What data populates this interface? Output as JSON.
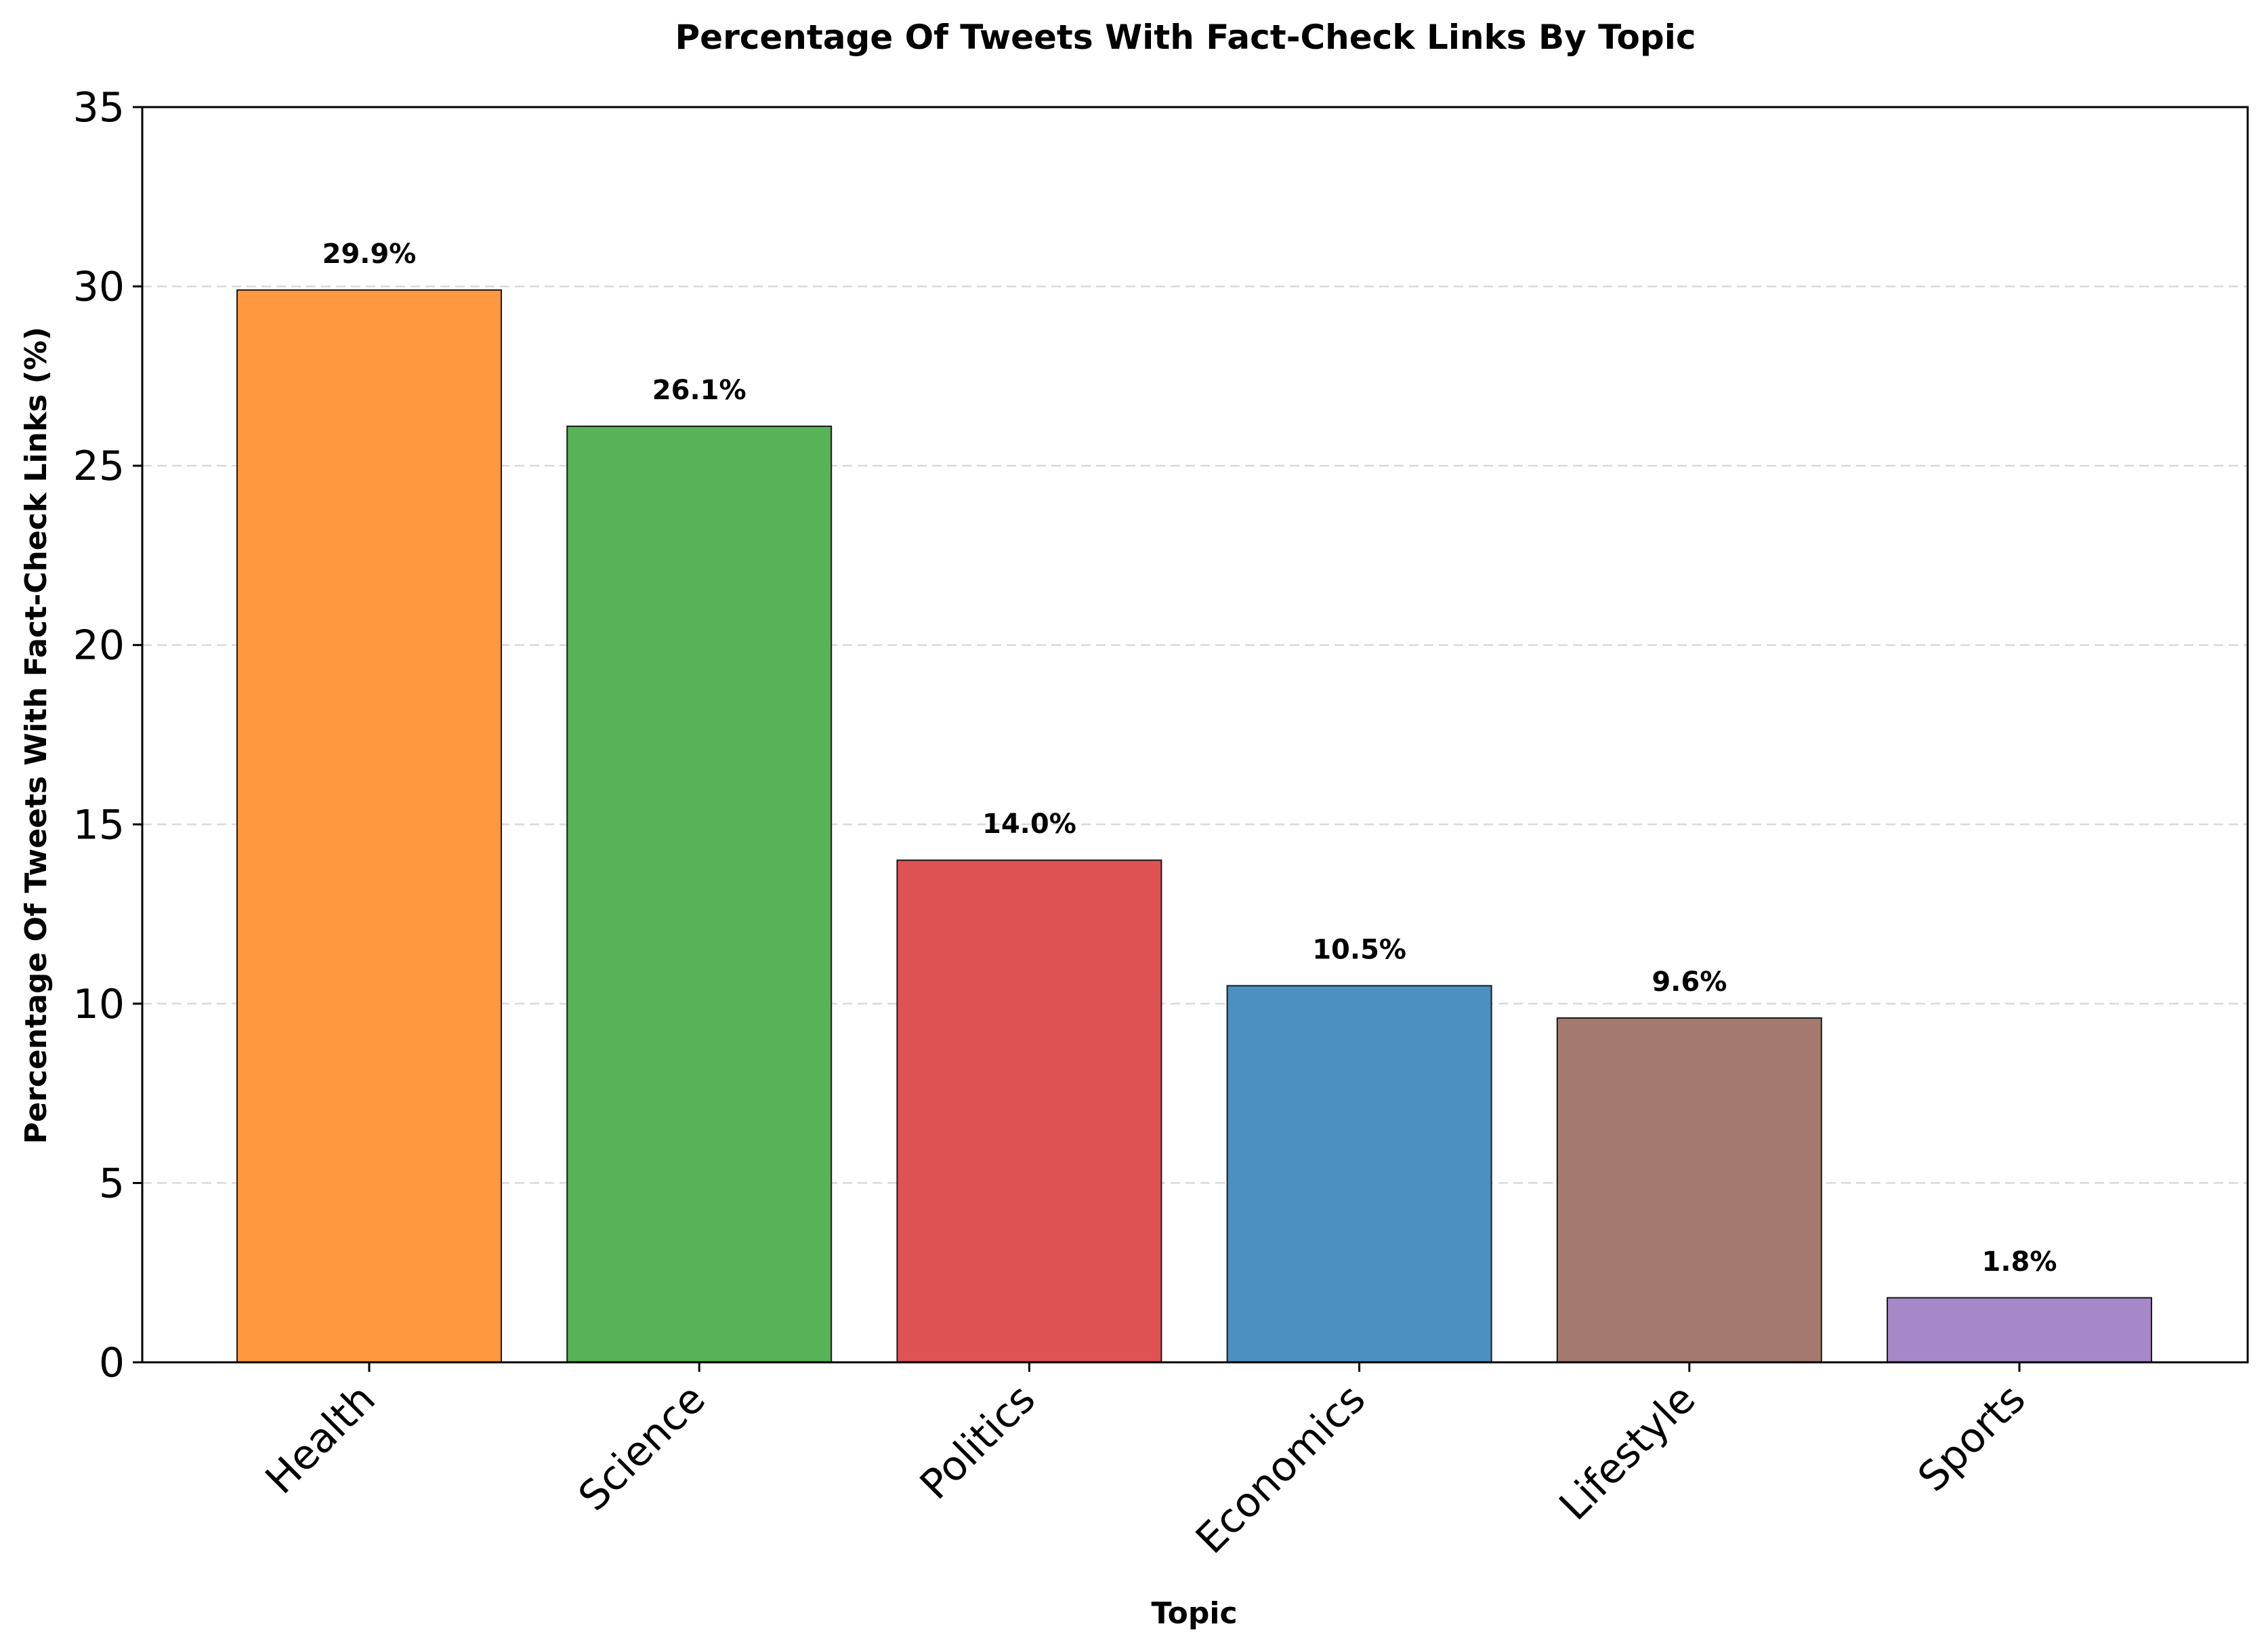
{
  "chart_data": {
    "type": "bar",
    "title": "Percentage Of Tweets With Fact-Check Links By Topic",
    "xlabel": "Topic",
    "ylabel": "Percentage Of Tweets With Fact-Check Links (%)",
    "categories": [
      "Health",
      "Science",
      "Politics",
      "Economics",
      "Lifestyle",
      "Sports"
    ],
    "values": [
      29.9,
      26.1,
      14.0,
      10.5,
      9.6,
      1.8
    ],
    "data_labels": [
      "29.9%",
      "26.1%",
      "14.0%",
      "10.5%",
      "9.6%",
      "1.8%"
    ],
    "colors": [
      "#ff983f",
      "#57b357",
      "#de5254",
      "#4a91c2",
      "#a47a6e",
      "#a687c8"
    ],
    "ylim": [
      0,
      35
    ],
    "yticks": [
      0,
      5,
      10,
      15,
      20,
      25,
      30,
      35
    ],
    "ytick_labels": [
      "0",
      "5",
      "10",
      "15",
      "20",
      "25",
      "30",
      "35"
    ],
    "grid": "y-axis dashed",
    "legend": "none"
  }
}
